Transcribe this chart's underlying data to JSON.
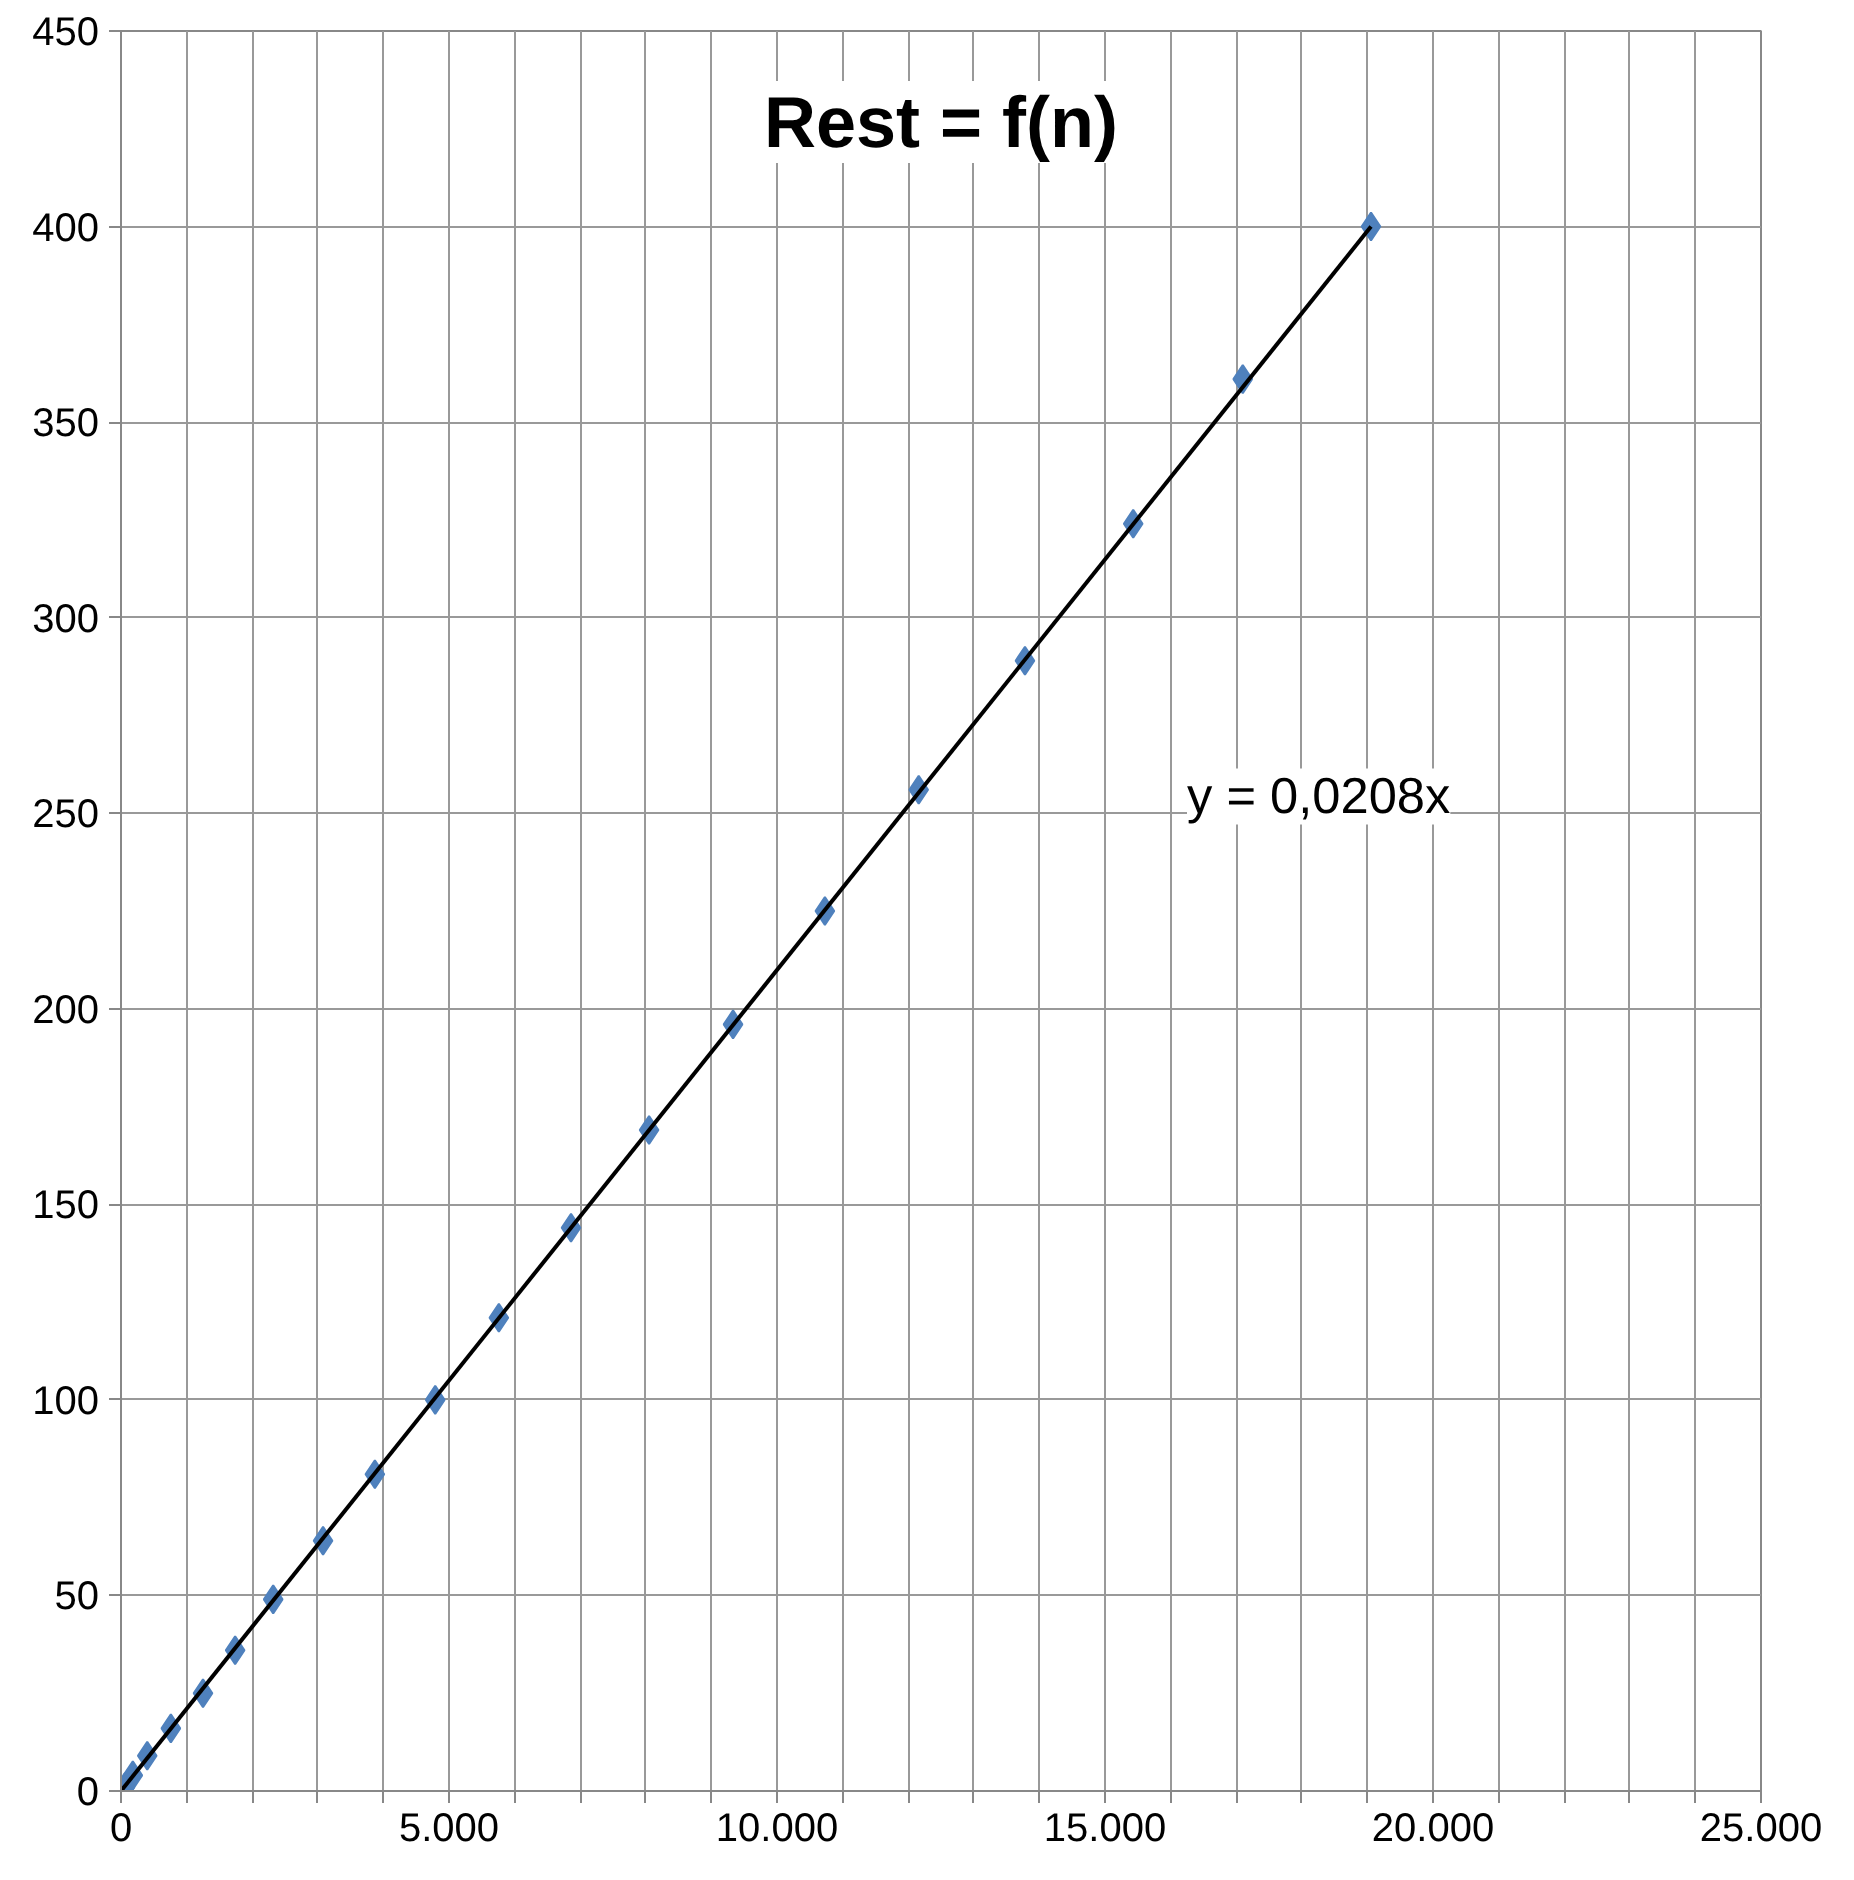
{
  "chart_data": {
    "type": "scatter",
    "title": "Rest = f(n)",
    "annotations": [
      "y = 0,0208x"
    ],
    "series": [
      {
        "color": "#4f81bd",
        "marker": "diamond",
        "x": [
          60,
          180,
          400,
          760,
          1250,
          1740,
          2320,
          3080,
          3870,
          4790,
          5760,
          6860,
          8050,
          9330,
          10730,
          12160,
          13780,
          15430,
          17100,
          19055
        ],
        "values": [
          1,
          4,
          9,
          16,
          25,
          36,
          49,
          64,
          81,
          100,
          121,
          144,
          169,
          196,
          225,
          256,
          289,
          324,
          361,
          400
        ]
      },
      {
        "type": "line",
        "color": "#000000",
        "x": [
          0,
          19055
        ],
        "values": [
          0,
          400
        ]
      }
    ],
    "xlim": [
      0,
      25000
    ],
    "ylim": [
      0,
      450
    ],
    "xticks": [
      {
        "value": 0,
        "label": "0"
      },
      {
        "value": 1000,
        "label": null
      },
      {
        "value": 2000,
        "label": null
      },
      {
        "value": 3000,
        "label": null
      },
      {
        "value": 4000,
        "label": null
      },
      {
        "value": 5000,
        "label": "5.000"
      },
      {
        "value": 6000,
        "label": null
      },
      {
        "value": 7000,
        "label": null
      },
      {
        "value": 8000,
        "label": null
      },
      {
        "value": 9000,
        "label": null
      },
      {
        "value": 10000,
        "label": "10.000"
      },
      {
        "value": 11000,
        "label": null
      },
      {
        "value": 12000,
        "label": null
      },
      {
        "value": 13000,
        "label": null
      },
      {
        "value": 14000,
        "label": null
      },
      {
        "value": 15000,
        "label": "15.000"
      },
      {
        "value": 16000,
        "label": null
      },
      {
        "value": 17000,
        "label": null
      },
      {
        "value": 18000,
        "label": null
      },
      {
        "value": 19000,
        "label": null
      },
      {
        "value": 20000,
        "label": "20.000"
      },
      {
        "value": 21000,
        "label": null
      },
      {
        "value": 22000,
        "label": null
      },
      {
        "value": 23000,
        "label": null
      },
      {
        "value": 24000,
        "label": null
      },
      {
        "value": 25000,
        "label": "25.000"
      }
    ],
    "yticks": [
      0,
      50,
      100,
      150,
      200,
      250,
      300,
      350,
      400,
      450
    ],
    "grid": true
  }
}
